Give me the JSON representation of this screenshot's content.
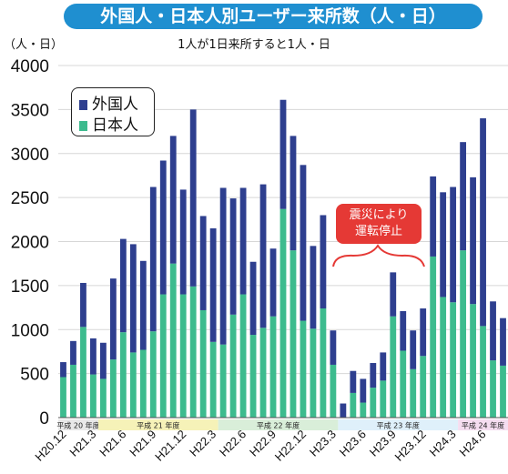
{
  "header": {
    "title": "外国人・日本人別ユーザー来所数（人・日）",
    "unit_label": "（人・日）",
    "subtitle": "1人が1日来所すると1人・日"
  },
  "legend": {
    "foreign": "外国人",
    "japanese": "日本人"
  },
  "note": {
    "line1": "震災により",
    "line2": "運転停止"
  },
  "colors": {
    "japanese": "#3dbb8e",
    "foreign": "#2e3f8f",
    "grid": "#d7d7d7",
    "title_bg": "#1f8fd0",
    "note_bg": "#e53935",
    "band_h20": "#e8e8e8",
    "band_h21": "#f6f2b8",
    "band_h22": "#d9eed9",
    "band_h23": "#dff0fa",
    "band_h24": "#f5ddf0"
  },
  "chart_data": {
    "type": "bar",
    "stacked": true,
    "ylim": [
      0,
      4000
    ],
    "yticks": [
      "0",
      "500",
      "1000",
      "1500",
      "2000",
      "2500",
      "3000",
      "3500",
      "4000"
    ],
    "tick_labels": [
      {
        "index": 0,
        "label": "H20.12"
      },
      {
        "index": 3,
        "label": "H21.3"
      },
      {
        "index": 6,
        "label": "H21.6"
      },
      {
        "index": 9,
        "label": "H21.9"
      },
      {
        "index": 12,
        "label": "H21.12"
      },
      {
        "index": 15,
        "label": "H22.3"
      },
      {
        "index": 18,
        "label": "H22.6"
      },
      {
        "index": 21,
        "label": "H22.9"
      },
      {
        "index": 24,
        "label": "H22.12"
      },
      {
        "index": 27,
        "label": "H23.3"
      },
      {
        "index": 30,
        "label": "H23.6"
      },
      {
        "index": 33,
        "label": "H23.9"
      },
      {
        "index": 36,
        "label": "H23.12"
      },
      {
        "index": 39,
        "label": "H24.3"
      },
      {
        "index": 42,
        "label": "H24.6"
      }
    ],
    "fiscal_years": [
      {
        "label": "平成 20 年度",
        "start": 0,
        "end": 4
      },
      {
        "label": "平成 21 年度",
        "start": 4,
        "end": 16
      },
      {
        "label": "平成 22 年度",
        "start": 16,
        "end": 28
      },
      {
        "label": "平成 23 年度",
        "start": 28,
        "end": 40
      },
      {
        "label": "平成 24 年度",
        "start": 40,
        "end": 45
      }
    ],
    "series": [
      {
        "name": "日本人",
        "values": [
          460,
          600,
          1030,
          490,
          440,
          660,
          970,
          740,
          770,
          980,
          1400,
          1750,
          1400,
          1490,
          1220,
          860,
          830,
          1170,
          1400,
          940,
          1020,
          1150,
          2370,
          1900,
          1100,
          1010,
          1240,
          600,
          0,
          280,
          170,
          340,
          420,
          1150,
          760,
          550,
          700,
          1830,
          1370,
          1310,
          1900,
          1290,
          1040,
          650,
          590
        ]
      },
      {
        "name": "外国人",
        "values": [
          170,
          270,
          500,
          410,
          410,
          920,
          1060,
          1230,
          1010,
          1640,
          1520,
          1450,
          1190,
          2010,
          1070,
          1290,
          1780,
          1320,
          1210,
          830,
          1630,
          770,
          1240,
          1300,
          1770,
          940,
          1060,
          390,
          160,
          250,
          270,
          280,
          320,
          500,
          450,
          440,
          540,
          910,
          1190,
          1310,
          1230,
          1440,
          2360,
          670,
          540
        ]
      }
    ]
  }
}
